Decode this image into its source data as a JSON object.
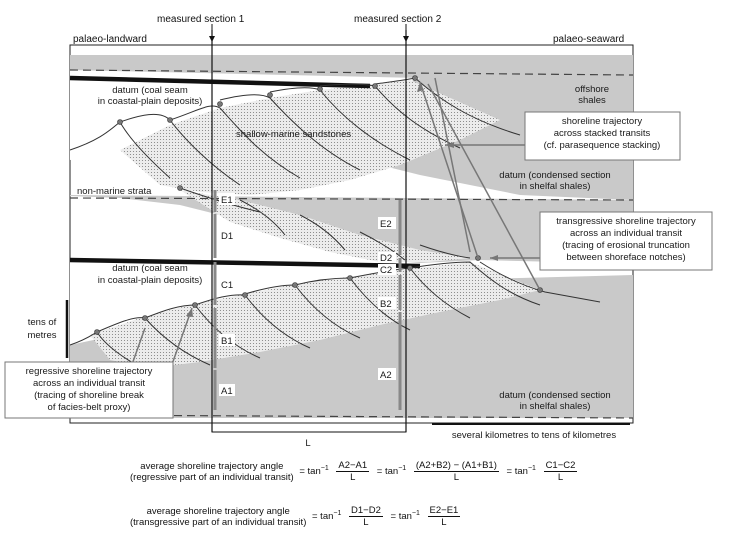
{
  "header": {
    "section1": "measured section 1",
    "section2": "measured section 2",
    "landward": "palaeo-landward",
    "seaward": "palaeo-seaward"
  },
  "labels": {
    "datum_coal_upper_1": "datum (coal seam",
    "datum_coal_upper_2": "in coastal-plain deposits)",
    "datum_coal_lower_1": "datum (coal seam",
    "datum_coal_lower_2": "in coastal-plain deposits)",
    "offshore_1": "offshore",
    "offshore_2": "shales",
    "shallow_marine": "shallow-marine sandstones",
    "non_marine": "non-marine strata",
    "datum_shelf_upper_1": "datum (condensed section",
    "datum_shelf_upper_2": "in shelfal shales)",
    "datum_shelf_lower_1": "datum (condensed section",
    "datum_shelf_lower_2": "in shelfal shales)",
    "tens_1": "tens of",
    "tens_2": "metres",
    "L": "L",
    "scale": "several kilometres to tens of kilometres"
  },
  "callouts": {
    "stacked": [
      "shoreline trajectory",
      "across stacked transits",
      "(cf. parasequence stacking)"
    ],
    "transgressive": [
      "transgressive shoreline trajectory",
      "across an individual transit",
      "(tracing of erosional truncation",
      "between shoreface notches)"
    ],
    "regressive": [
      "regressive shoreline trajectory",
      "across an individual transit",
      "(tracing of shoreline break",
      "of facies-belt proxy)"
    ]
  },
  "markers": {
    "E1": "E1",
    "D1": "D1",
    "C1": "C1",
    "B1": "B1",
    "A1": "A1",
    "E2": "E2",
    "D2": "D2",
    "C2": "C2",
    "B2": "B2",
    "A2": "A2"
  },
  "formulas": {
    "regressive": {
      "label_1": "average shoreline trajectory angle",
      "label_2": "(regressive part of an individual transit)",
      "eq": "= tan",
      "inv": "−1",
      "f1_num": "A2−A1",
      "f1_den": "L",
      "f2_num": "(A2+B2) − (A1+B1)",
      "f2_den": "L",
      "f3_num": "C1−C2",
      "f3_den": "L"
    },
    "transgressive": {
      "label_1": "average shoreline trajectory angle",
      "label_2": "(transgressive part of an individual transit)",
      "eq": "= tan",
      "inv": "−1",
      "f1_num": "D1−D2",
      "f1_den": "L",
      "f2_num": "E2−E1",
      "f2_den": "L"
    }
  },
  "colors": {
    "shale": "#c9c9c9",
    "sand": "#e8e8e8",
    "line": "#222222"
  }
}
